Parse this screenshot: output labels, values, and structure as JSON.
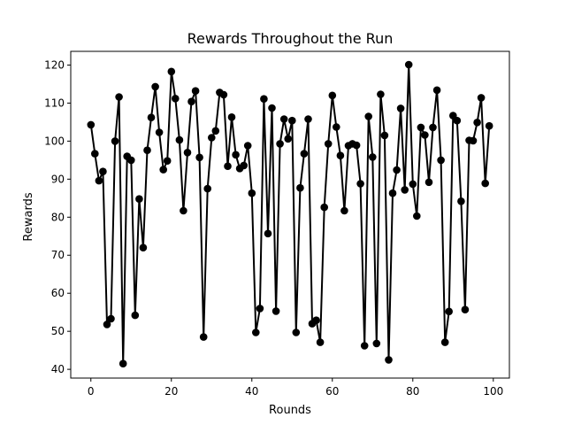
{
  "chart_data": {
    "type": "line",
    "title": "Rewards Throughout the Run",
    "xlabel": "Rounds",
    "ylabel": "Rewards",
    "xlim": [
      -5,
      104
    ],
    "ylim": [
      37.7,
      123.6
    ],
    "xticks": [
      0,
      20,
      40,
      60,
      80,
      100
    ],
    "yticks": [
      40,
      50,
      60,
      70,
      80,
      90,
      100,
      110,
      120
    ],
    "grid": false,
    "legend": "none",
    "line_color": "#000000",
    "marker": "circle",
    "series": [
      {
        "x": [
          0,
          1,
          2,
          3,
          4,
          5,
          6,
          7,
          8,
          9,
          10,
          11,
          12,
          13,
          14,
          15,
          16,
          17,
          18,
          19,
          20,
          21,
          22,
          23,
          24,
          25,
          26,
          27,
          28,
          29,
          30,
          31,
          32,
          33,
          34,
          35,
          36,
          37,
          38,
          39,
          40,
          41,
          42,
          43,
          44,
          45,
          46,
          47,
          48,
          49,
          50,
          51,
          52,
          53,
          54,
          55,
          56,
          57,
          58,
          59,
          60,
          61,
          62,
          63,
          64,
          65,
          66,
          67,
          68,
          69,
          70,
          71,
          72,
          73,
          74,
          75,
          76,
          77,
          78,
          79,
          80,
          81,
          82,
          83,
          84,
          85,
          86,
          87,
          88,
          89,
          90,
          91,
          92,
          93,
          94,
          95,
          96,
          97,
          98,
          99
        ],
        "values": [
          104.3,
          96.7,
          89.6,
          92.0,
          51.8,
          53.3,
          100.0,
          111.6,
          41.5,
          96.0,
          95.0,
          54.2,
          84.8,
          72.0,
          97.6,
          106.2,
          114.3,
          102.3,
          92.5,
          94.8,
          118.3,
          111.2,
          100.3,
          81.7,
          97.0,
          110.4,
          113.2,
          95.7,
          48.5,
          87.5,
          100.9,
          102.7,
          112.8,
          112.2,
          93.4,
          106.3,
          96.4,
          92.8,
          93.6,
          98.8,
          86.3,
          49.7,
          56.0,
          111.1,
          75.7,
          108.7,
          55.3,
          99.3,
          105.8,
          100.6,
          105.4,
          49.7,
          87.7,
          96.7,
          105.8,
          52.0,
          52.9,
          47.1,
          82.6,
          99.3,
          112.0,
          103.7,
          96.2,
          81.7,
          98.8,
          99.3,
          98.9,
          88.8,
          46.2,
          106.5,
          95.8,
          46.8,
          112.3,
          101.5,
          42.5,
          86.3,
          92.4,
          108.6,
          87.2,
          120.1,
          88.7,
          80.3,
          103.6,
          101.6,
          89.2,
          103.6,
          113.4,
          95.0,
          47.1,
          55.2,
          106.7,
          105.4,
          84.2,
          55.7,
          100.2,
          100.1,
          104.9,
          111.4,
          88.9,
          104.0
        ]
      }
    ]
  }
}
